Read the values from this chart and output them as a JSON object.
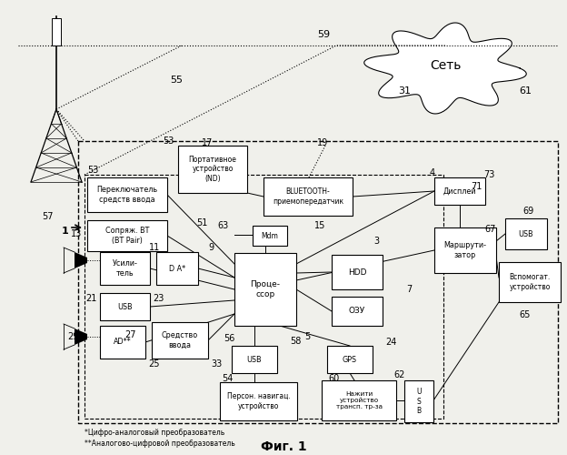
{
  "title": "Фиг. 1",
  "bg_color": "#f5f5f0",
  "footnote1": "*Цифро-аналоговый преобразователь",
  "footnote2": "**Аналогово-цифровой преобразователь"
}
